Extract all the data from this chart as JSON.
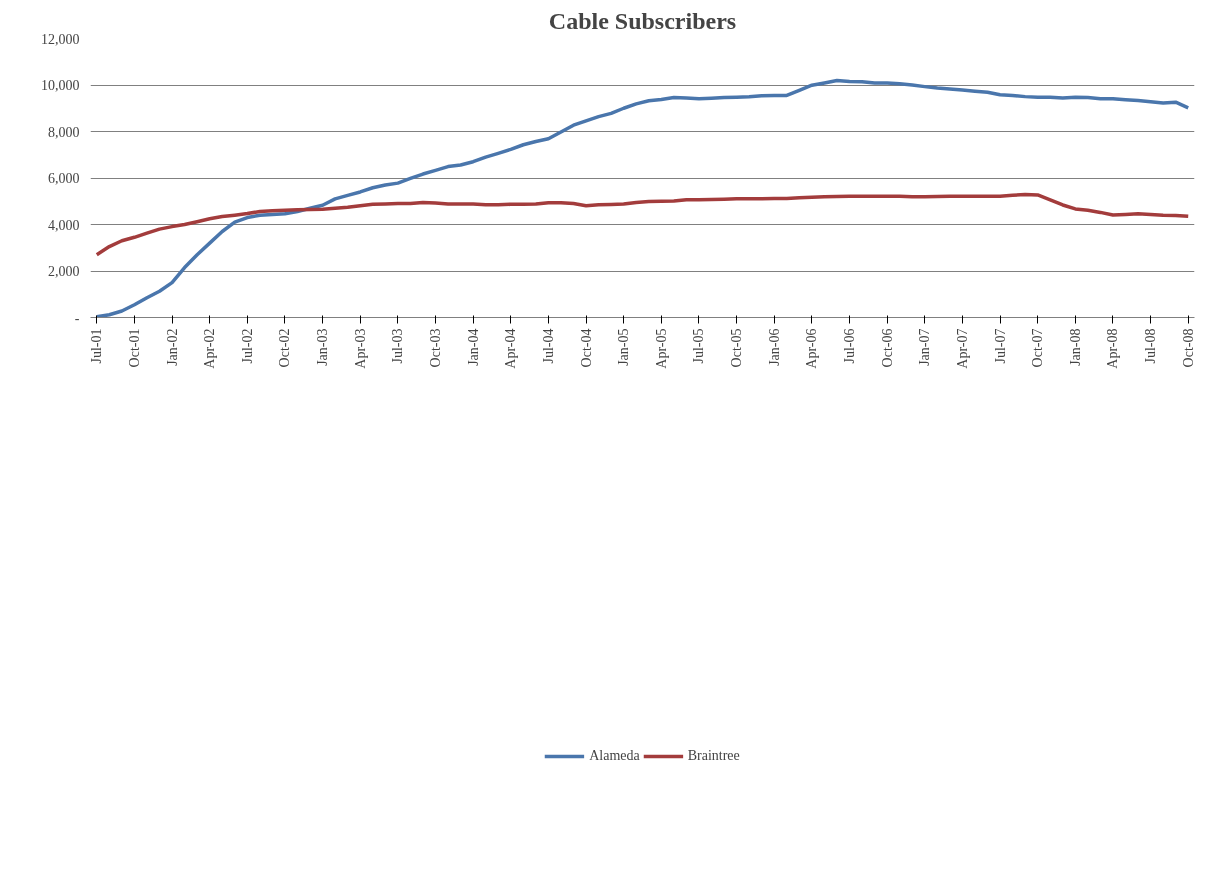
{
  "chart_data": {
    "type": "line",
    "title": "Cable Subscribers",
    "categories": [
      "Jul-01",
      null,
      null,
      "Oct-01",
      null,
      null,
      "Jan-02",
      null,
      null,
      "Apr-02",
      null,
      null,
      "Jul-02",
      null,
      null,
      "Oct-02",
      null,
      null,
      "Jan-03",
      null,
      null,
      "Apr-03",
      null,
      null,
      "Jul-03",
      null,
      null,
      "Oct-03",
      null,
      null,
      "Jan-04",
      null,
      null,
      "Apr-04",
      null,
      null,
      "Jul-04",
      null,
      null,
      "Oct-04",
      null,
      null,
      "Jan-05",
      null,
      null,
      "Apr-05",
      null,
      null,
      "Jul-05",
      null,
      null,
      "Oct-05",
      null,
      null,
      "Jan-06",
      null,
      null,
      "Apr-06",
      null,
      null,
      "Jul-06",
      null,
      null,
      "Oct-06",
      null,
      null,
      "Jan-07",
      null,
      null,
      "Apr-07",
      null,
      null,
      "Jul-07",
      null,
      null,
      "Oct-07",
      null,
      null,
      "Jan-08",
      null,
      null,
      "Apr-08",
      null,
      null,
      "Jul-08",
      null,
      null,
      "Oct-08"
    ],
    "series": [
      {
        "name": "Alameda",
        "color": "#4a76ac",
        "values": [
          30,
          120,
          280,
          550,
          850,
          1130,
          1500,
          2150,
          2700,
          3200,
          3700,
          4100,
          4300,
          4400,
          4430,
          4460,
          4560,
          4700,
          4830,
          5100,
          5250,
          5400,
          5580,
          5700,
          5780,
          5980,
          6170,
          6330,
          6490,
          6560,
          6700,
          6900,
          7060,
          7230,
          7430,
          7570,
          7690,
          7980,
          8270,
          8460,
          8640,
          8780,
          9000,
          9190,
          9320,
          9380,
          9460,
          9440,
          9410,
          9430,
          9460,
          9470,
          9490,
          9540,
          9550,
          9550,
          9770,
          9990,
          10090,
          10190,
          10150,
          10140,
          10090,
          10090,
          10050,
          10000,
          9930,
          9870,
          9830,
          9780,
          9730,
          9690,
          9580,
          9550,
          9500,
          9470,
          9470,
          9440,
          9470,
          9460,
          9410,
          9410,
          9370,
          9330,
          9280,
          9230,
          9260,
          9020
        ]
      },
      {
        "name": "Braintree",
        "color": "#a33c3c",
        "values": [
          2700,
          3050,
          3300,
          3450,
          3630,
          3800,
          3910,
          4000,
          4120,
          4250,
          4340,
          4400,
          4470,
          4560,
          4590,
          4610,
          4630,
          4650,
          4660,
          4700,
          4740,
          4810,
          4870,
          4880,
          4900,
          4900,
          4950,
          4920,
          4880,
          4880,
          4880,
          4850,
          4850,
          4870,
          4870,
          4880,
          4940,
          4940,
          4900,
          4810,
          4850,
          4860,
          4880,
          4950,
          4990,
          5000,
          5010,
          5060,
          5060,
          5070,
          5090,
          5110,
          5110,
          5110,
          5120,
          5120,
          5150,
          5170,
          5190,
          5200,
          5210,
          5220,
          5220,
          5220,
          5210,
          5190,
          5190,
          5200,
          5210,
          5210,
          5220,
          5220,
          5220,
          5260,
          5290,
          5270,
          5060,
          4840,
          4670,
          4610,
          4520,
          4410,
          4430,
          4460,
          4430,
          4400,
          4390,
          4350
        ]
      }
    ],
    "ylim": [
      0,
      12000
    ],
    "yticks": [
      {
        "value": 0,
        "label": "-"
      },
      {
        "value": 2000,
        "label": "2,000"
      },
      {
        "value": 4000,
        "label": "4,000"
      },
      {
        "value": 6000,
        "label": "6,000"
      },
      {
        "value": 8000,
        "label": "8,000"
      },
      {
        "value": 10000,
        "label": "10,000"
      },
      {
        "value": 12000,
        "label": "12,000"
      }
    ],
    "grid": "y",
    "legend": "bottom",
    "line_style": "solid",
    "marker": "none"
  }
}
